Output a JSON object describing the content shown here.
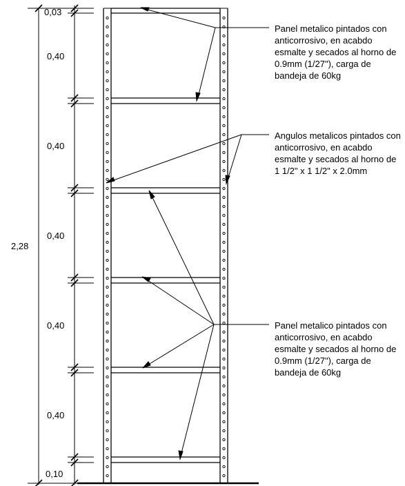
{
  "dimensions": {
    "total": "2,28",
    "top_gap": "0,03",
    "bottom_gap": "0,10",
    "spacings": [
      "0,40",
      "0,40",
      "0,40",
      "0,40",
      "0,40"
    ]
  },
  "notes": {
    "panel_top": "Panel metalico pintados con anticorrosivo, en acabdo esmalte y secados al horno de 0.9mm (1/27\"), carga de bandeja de 60kg",
    "angles": "Angulos metalicos pintados con anticorrosivo, en acabdo esmalte y secados al horno de 1 1/2\" x 1 1/2\" x 2.0mm",
    "panel_bottom": "Panel metalico pintados con anticorrosivo, en acabdo esmalte y secados al horno de 0.9mm (1/27\"), carga de bandeja de 60kg"
  }
}
